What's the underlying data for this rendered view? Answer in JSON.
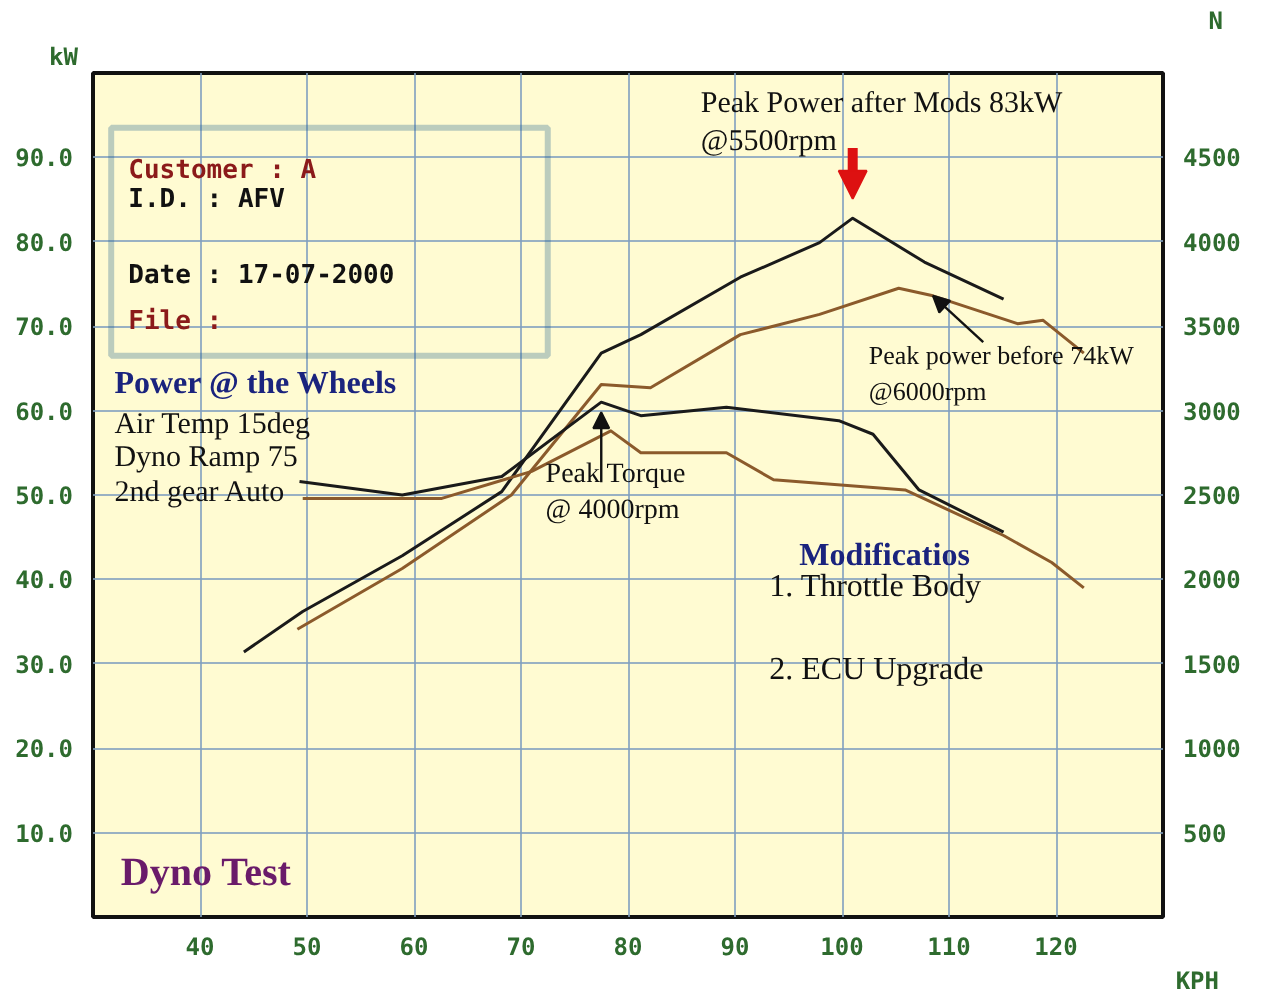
{
  "chart_data": {
    "type": "line",
    "xlabel": "KPH",
    "ylabel": "kW",
    "y2label": "N",
    "xlim": [
      30,
      130
    ],
    "xticks": [
      40,
      50,
      60,
      70,
      80,
      90,
      100,
      110,
      120
    ],
    "ylim": [
      0,
      100
    ],
    "yticks": [
      {
        "value": 10,
        "label": "10.0"
      },
      {
        "value": 20,
        "label": "20.0"
      },
      {
        "value": 30,
        "label": "30.0"
      },
      {
        "value": 40,
        "label": "40.0"
      },
      {
        "value": 50,
        "label": "50.0"
      },
      {
        "value": 60,
        "label": "60.0"
      },
      {
        "value": 70,
        "label": "70.0"
      },
      {
        "value": 80,
        "label": "80.0"
      },
      {
        "value": 90,
        "label": "90.0"
      }
    ],
    "y2lim": [
      0,
      5000
    ],
    "y2ticks": [
      500,
      1000,
      1500,
      2000,
      2500,
      3000,
      3500,
      4000,
      4500
    ],
    "grid": true,
    "series": [
      {
        "color": "#1a1a1a",
        "x": [
          44.1,
          49.6,
          58.9,
          68.2,
          77.5,
          81.2,
          90.5,
          97.9,
          101,
          107.7,
          115.1
        ],
        "values": [
          31.4,
          36.2,
          42.8,
          50.4,
          66.8,
          69.0,
          75.8,
          79.9,
          82.8,
          77.6,
          73.2
        ]
      },
      {
        "color": "#8b5a2b",
        "x": [
          49.1,
          58.9,
          69.1,
          77.5,
          82.1,
          90.5,
          97.9,
          105.3,
          108.5,
          116.4,
          118.8,
          122.6
        ],
        "values": [
          34.1,
          41.3,
          50.0,
          63.1,
          62.7,
          69.0,
          71.4,
          74.5,
          73.6,
          70.3,
          70.7,
          66.8
        ]
      },
      {
        "color": "#1a1a1a",
        "axis": "y2",
        "x": [
          49.3,
          58.9,
          68.2,
          77.5,
          81.2,
          89.2,
          99.7,
          102.9,
          107.2,
          115.1
        ],
        "values": [
          2580,
          2500,
          2610,
          3050,
          2970,
          3020,
          2940,
          2860,
          2530,
          2280
        ]
      },
      {
        "color": "#8b5a2b",
        "axis": "y2",
        "x": [
          49.6,
          62.6,
          71.0,
          78.4,
          81.2,
          89.2,
          93.6,
          105.9,
          115.1,
          119.6,
          122.6
        ],
        "values": [
          2480,
          2480,
          2640,
          2880,
          2750,
          2750,
          2590,
          2530,
          2260,
          2100,
          1950
        ]
      }
    ],
    "annotations": [
      "Customer : A",
      "I.D.     : AFV",
      "Date     : 17-07-2000",
      "File     :",
      "Power @ the Wheels",
      "Air Temp 15deg",
      "Dyno Ramp 75",
      "2nd gear Auto",
      {
        "text": "Peak Torque\n@ 4000rpm",
        "x": 77.5,
        "y": 59.8
      },
      {
        "text": "Peak Power after Mods 83kW\n@5500rpm",
        "x": 101,
        "y": 82.8
      },
      {
        "text": "Peak power before 74kW\n@6000rpm",
        "x": 108.5,
        "y": 73.6
      },
      "Modificatios",
      "1. Throttle Body",
      "2. ECU Upgrade",
      "Dyno Test"
    ]
  }
}
